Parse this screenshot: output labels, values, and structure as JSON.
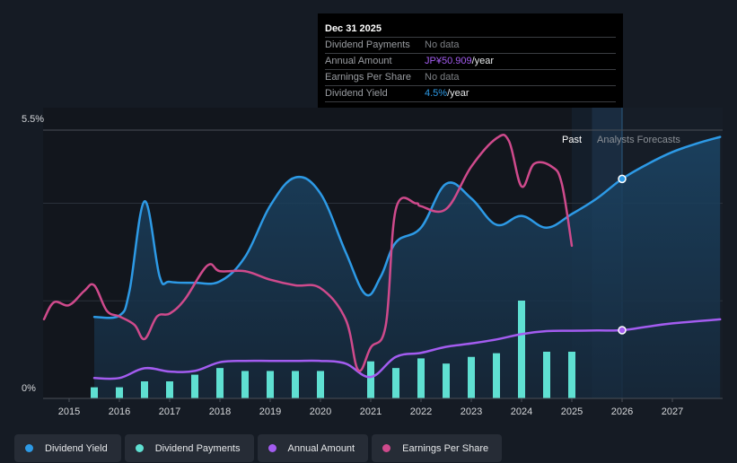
{
  "tooltip": {
    "date": "Dec 31 2025",
    "rows": [
      {
        "key": "Dividend Payments",
        "value": "No data",
        "unit": ""
      },
      {
        "key": "Annual Amount",
        "value": "JP¥50.909",
        "unit": "/year",
        "color": "#a35cf0"
      },
      {
        "key": "Earnings Per Share",
        "value": "No data",
        "unit": ""
      },
      {
        "key": "Dividend Yield",
        "value": "4.5%",
        "unit": "/year",
        "color": "#2d9ae6"
      }
    ]
  },
  "labels": {
    "past": "Past",
    "forecast": "Analysts Forecasts"
  },
  "legend": [
    {
      "label": "Dividend Yield",
      "color": "#2d9ae6"
    },
    {
      "label": "Dividend Payments",
      "color": "#5fe0d2"
    },
    {
      "label": "Annual Amount",
      "color": "#a35cf0"
    },
    {
      "label": "Earnings Per Share",
      "color": "#cf4a8c"
    }
  ],
  "chart_data": {
    "type": "line",
    "title": "",
    "xlabel": "",
    "ylabel": "",
    "x_ticks": [
      "2015",
      "2016",
      "2017",
      "2018",
      "2019",
      "2020",
      "2021",
      "2022",
      "2023",
      "2024",
      "2025",
      "2026",
      "2027"
    ],
    "xlim": [
      2014.5,
      2027.95
    ],
    "y_ticks": [
      "0%",
      "5.5%"
    ],
    "ylim": [
      0,
      5.5
    ],
    "past_until": 2025.0,
    "highlight_band": [
      2025.4,
      2026.0
    ],
    "forecast_start": 2026.0,
    "grid": true,
    "legend_position": "bottom",
    "series": [
      {
        "name": "Dividend Yield",
        "unit": "%",
        "color": "#2d9ae6",
        "points": [
          [
            2015.5,
            1.67
          ],
          [
            2016.0,
            1.7
          ],
          [
            2016.2,
            2.2
          ],
          [
            2016.5,
            4.04
          ],
          [
            2016.8,
            2.5
          ],
          [
            2017.0,
            2.39
          ],
          [
            2017.5,
            2.37
          ],
          [
            2018.0,
            2.4
          ],
          [
            2018.5,
            2.9
          ],
          [
            2019.0,
            3.95
          ],
          [
            2019.5,
            4.53
          ],
          [
            2020.0,
            4.2
          ],
          [
            2020.5,
            3.0
          ],
          [
            2020.9,
            2.13
          ],
          [
            2021.2,
            2.5
          ],
          [
            2021.5,
            3.2
          ],
          [
            2022.0,
            3.5
          ],
          [
            2022.5,
            4.4
          ],
          [
            2023.0,
            4.1
          ],
          [
            2023.5,
            3.56
          ],
          [
            2024.0,
            3.74
          ],
          [
            2024.5,
            3.5
          ],
          [
            2025.0,
            3.78
          ],
          [
            2025.5,
            4.1
          ],
          [
            2026.0,
            4.5
          ],
          [
            2026.5,
            4.8
          ],
          [
            2027.0,
            5.05
          ],
          [
            2027.5,
            5.23
          ],
          [
            2027.95,
            5.36
          ]
        ],
        "markers": [
          [
            2026.0,
            4.5
          ]
        ]
      },
      {
        "name": "Annual Amount",
        "unit": "JPY",
        "color": "#a35cf0",
        "points": [
          [
            2015.5,
            15.2
          ],
          [
            2016.0,
            15.2
          ],
          [
            2016.5,
            22.5
          ],
          [
            2017.0,
            20.0
          ],
          [
            2017.5,
            20.5
          ],
          [
            2018.0,
            27.0
          ],
          [
            2018.5,
            28.0
          ],
          [
            2019.0,
            28.0
          ],
          [
            2019.5,
            28.0
          ],
          [
            2020.0,
            28.0
          ],
          [
            2020.5,
            26.0
          ],
          [
            2021.0,
            16.0
          ],
          [
            2021.5,
            31.0
          ],
          [
            2022.0,
            34.0
          ],
          [
            2022.5,
            38.5
          ],
          [
            2023.0,
            41.0
          ],
          [
            2023.5,
            44.0
          ],
          [
            2024.0,
            48.0
          ],
          [
            2024.5,
            50.2
          ],
          [
            2025.0,
            50.5
          ],
          [
            2025.5,
            50.7
          ],
          [
            2026.0,
            50.909
          ],
          [
            2026.5,
            53.5
          ],
          [
            2027.0,
            56.0
          ],
          [
            2027.95,
            59.0
          ]
        ],
        "markers": [
          [
            2026.0,
            50.909
          ]
        ]
      },
      {
        "name": "Earnings Per Share",
        "unit": "JPY",
        "color": "#cf4a8c",
        "points": [
          [
            2014.5,
            140
          ],
          [
            2014.7,
            170
          ],
          [
            2015.0,
            165
          ],
          [
            2015.3,
            190
          ],
          [
            2015.5,
            200
          ],
          [
            2015.75,
            155
          ],
          [
            2016.0,
            145
          ],
          [
            2016.3,
            130
          ],
          [
            2016.5,
            105
          ],
          [
            2016.75,
            145
          ],
          [
            2017.0,
            150
          ],
          [
            2017.3,
            175
          ],
          [
            2017.75,
            235
          ],
          [
            2018.0,
            225
          ],
          [
            2018.5,
            225
          ],
          [
            2019.0,
            210
          ],
          [
            2019.5,
            200
          ],
          [
            2020.0,
            195
          ],
          [
            2020.5,
            140
          ],
          [
            2020.75,
            50
          ],
          [
            2021.0,
            90
          ],
          [
            2021.3,
            130
          ],
          [
            2021.5,
            335
          ],
          [
            2021.9,
            345
          ],
          [
            2022.0,
            340
          ],
          [
            2022.5,
            335
          ],
          [
            2023.0,
            410
          ],
          [
            2023.5,
            460
          ],
          [
            2023.75,
            455
          ],
          [
            2024.0,
            375
          ],
          [
            2024.25,
            415
          ],
          [
            2024.6,
            410
          ],
          [
            2024.8,
            380
          ],
          [
            2025.0,
            270
          ]
        ]
      }
    ],
    "bars": {
      "name": "Dividend Payments",
      "unit": "JPY",
      "color": "#5fe0d2",
      "x": [
        2015.5,
        2016.0,
        2016.5,
        2017.0,
        2017.5,
        2018.0,
        2018.5,
        2019.0,
        2019.5,
        2020.0,
        2021.0,
        2021.5,
        2022.0,
        2022.5,
        2023.0,
        2023.5,
        2024.0,
        2024.5,
        2025.0
      ],
      "values": [
        7.5,
        7.5,
        11.5,
        11.5,
        16.0,
        20.5,
        18.5,
        18.5,
        18.5,
        18.5,
        25.0,
        20.5,
        27.0,
        23.5,
        28.0,
        30.5,
        66.0,
        31.5,
        31.5
      ]
    }
  }
}
